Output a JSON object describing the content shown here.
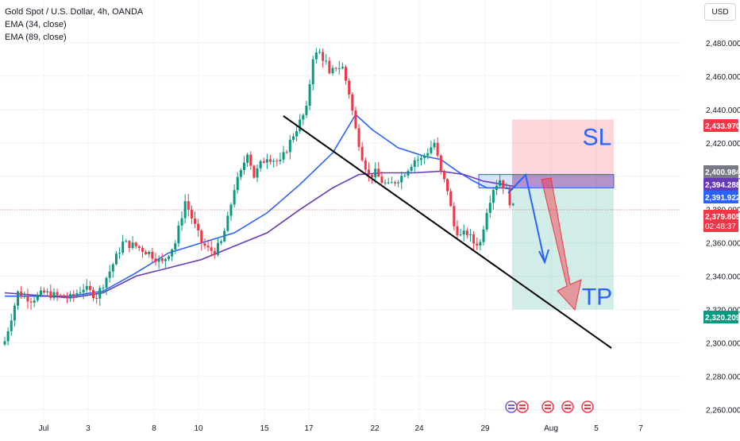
{
  "header": {
    "symbol_title": "Gold Spot / U.S. Dollar, 4h, OANDA",
    "indicators": [
      "EMA (34, close)",
      "EMA (89, close)"
    ],
    "currency": "USD"
  },
  "chart_data": {
    "type": "candlestick",
    "ylim": [
      2253,
      2500
    ],
    "y_ticks": [
      2260,
      2280,
      2300,
      2320,
      2340,
      2360,
      2380,
      2400,
      2420,
      2440,
      2460,
      2480
    ],
    "y_tick_labels": [
      "2,260.000",
      "2,280.000",
      "2,300.000",
      "2,320.000",
      "2,340.000",
      "2,360.000",
      "2,380.000",
      "2,400.000",
      "2,420.000",
      "2,440.000",
      "2,460.000",
      "2,480.000"
    ],
    "x_ticks": [
      "Jul",
      "3",
      "8",
      "10",
      "15",
      "17",
      "22",
      "24",
      "29",
      "Aug",
      "5",
      "7"
    ],
    "candle_count": 126,
    "close_path": [
      [
        0,
        2301
      ],
      [
        4,
        2330
      ],
      [
        8,
        2326
      ],
      [
        12,
        2330
      ],
      [
        16,
        2328
      ],
      [
        20,
        2327
      ],
      [
        24,
        2333
      ],
      [
        28,
        2328
      ],
      [
        32,
        2343
      ],
      [
        36,
        2360
      ],
      [
        40,
        2358
      ],
      [
        44,
        2354
      ],
      [
        48,
        2348
      ],
      [
        52,
        2360
      ],
      [
        55,
        2385
      ],
      [
        58,
        2370
      ],
      [
        60,
        2360
      ],
      [
        62,
        2356
      ],
      [
        64,
        2355
      ],
      [
        66,
        2360
      ],
      [
        68,
        2374
      ],
      [
        70,
        2393
      ],
      [
        72,
        2402
      ],
      [
        74,
        2415
      ],
      [
        76,
        2400
      ],
      [
        78,
        2407
      ],
      [
        80,
        2412
      ],
      [
        84,
        2408
      ],
      [
        88,
        2425
      ],
      [
        92,
        2440
      ],
      [
        94,
        2472
      ],
      [
        96,
        2474
      ],
      [
        98,
        2468
      ],
      [
        99,
        2460
      ],
      [
        101,
        2466
      ],
      [
        103,
        2465
      ],
      [
        105,
        2450
      ],
      [
        107,
        2428
      ],
      [
        109,
        2412
      ],
      [
        111,
        2400
      ],
      [
        113,
        2402
      ],
      [
        115,
        2397
      ],
      [
        117,
        2394
      ],
      [
        119,
        2397
      ],
      [
        121,
        2400
      ],
      [
        123,
        2405
      ],
      [
        125,
        2410
      ],
      [
        127,
        2410
      ],
      [
        129,
        2415
      ],
      [
        131,
        2420
      ],
      [
        133,
        2402
      ],
      [
        135,
        2392
      ],
      [
        137,
        2370
      ],
      [
        139,
        2364
      ],
      [
        141,
        2366
      ],
      [
        143,
        2360
      ],
      [
        145,
        2360
      ],
      [
        147,
        2380
      ],
      [
        149,
        2393
      ],
      [
        151,
        2398
      ],
      [
        153,
        2391
      ],
      [
        154,
        2385
      ],
      [
        155,
        2381
      ]
    ],
    "series": [
      {
        "name": "EMA (34, close)",
        "color": "#2962ff",
        "points": [
          [
            0,
            2328
          ],
          [
            20,
            2328
          ],
          [
            30,
            2331
          ],
          [
            40,
            2342
          ],
          [
            50,
            2354
          ],
          [
            60,
            2360
          ],
          [
            70,
            2366
          ],
          [
            80,
            2378
          ],
          [
            90,
            2395
          ],
          [
            100,
            2414
          ],
          [
            107,
            2437
          ],
          [
            112,
            2428
          ],
          [
            120,
            2417
          ],
          [
            128,
            2412
          ],
          [
            133,
            2410
          ],
          [
            138,
            2403
          ],
          [
            143,
            2397
          ],
          [
            147,
            2393
          ],
          [
            152,
            2393
          ],
          [
            155,
            2392
          ]
        ]
      },
      {
        "name": "EMA (89, close)",
        "color": "#673ab7",
        "points": [
          [
            0,
            2330
          ],
          [
            20,
            2327
          ],
          [
            30,
            2330
          ],
          [
            40,
            2340
          ],
          [
            50,
            2345
          ],
          [
            60,
            2350
          ],
          [
            70,
            2358
          ],
          [
            80,
            2366
          ],
          [
            90,
            2380
          ],
          [
            100,
            2393
          ],
          [
            108,
            2401
          ],
          [
            115,
            2402
          ],
          [
            125,
            2402
          ],
          [
            133,
            2403
          ],
          [
            140,
            2401
          ],
          [
            146,
            2397
          ],
          [
            152,
            2395
          ],
          [
            155,
            2394
          ]
        ]
      }
    ],
    "price_labels": [
      {
        "value": 2433.97,
        "text": "2,433.970",
        "color": "#f23645"
      },
      {
        "value": 2400.984,
        "text": "2,400.984",
        "color": "#787b86"
      },
      {
        "value": 2394.288,
        "text": "2,394.288",
        "color": "#673ab7"
      },
      {
        "value": 2391.922,
        "text": "2,391.922",
        "color": "#2962ff"
      },
      {
        "value": 2379.805,
        "text": "2,379.805",
        "countdown": "02:48:37",
        "color": "#f23645"
      },
      {
        "value": 2320.209,
        "text": "2,320.209",
        "color": "#089981"
      }
    ],
    "current_price": 2379.805,
    "position": {
      "entry": 2394,
      "stop": 2434,
      "target": 2320,
      "stop_label": "SL",
      "target_label": "TP"
    },
    "zone": {
      "high": 2401,
      "low": 2393
    },
    "trendline": {
      "from": [
        2470,
        2434
      ],
      "to": [
        2880,
        2296
      ]
    }
  }
}
